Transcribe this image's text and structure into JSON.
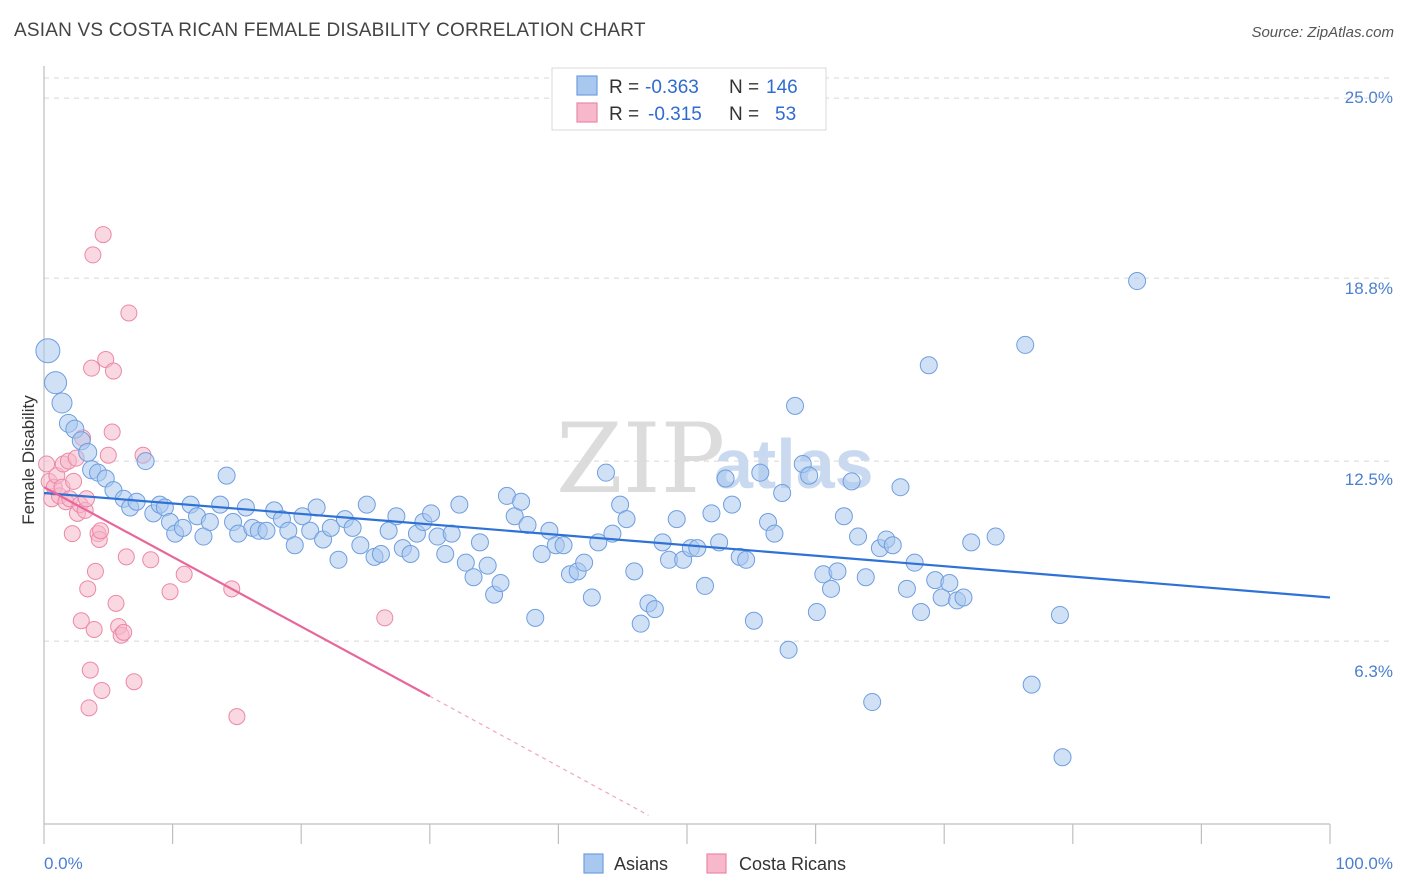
{
  "title": "ASIAN VS COSTA RICAN FEMALE DISABILITY CORRELATION CHART",
  "source": "Source: ZipAtlas.com",
  "watermark": {
    "part1": "ZIP",
    "part2": "atlas"
  },
  "legend_top": {
    "rows": [
      {
        "r_label": "R =",
        "r_value": "-0.363",
        "n_label": "N =",
        "n_value": "146"
      },
      {
        "r_label": "R =",
        "r_value": "-0.315",
        "n_label": "N =",
        "n_value": "53"
      }
    ]
  },
  "legend_bottom": {
    "asians": "Asians",
    "costa_ricans": "Costa Ricans"
  },
  "colors": {
    "asians_fill": "#a9c8ef",
    "asians_stroke": "#6f9ee0",
    "asians_line": "#2f72d6",
    "cr_fill": "#f6b8ca",
    "cr_stroke": "#ec88a7",
    "cr_line": "#e8679a",
    "grid": "#d8d8d8",
    "tick_text": "#4a7fd0"
  },
  "chart_data": {
    "type": "scatter",
    "title": "ASIAN VS COSTA RICAN FEMALE DISABILITY CORRELATION CHART",
    "xlabel": "",
    "ylabel": "Female Disability",
    "xlim": [
      0,
      100
    ],
    "ylim": [
      0,
      25.9
    ],
    "x_tick_labels": [
      "0.0%",
      "100.0%"
    ],
    "y_ticks": [
      6.3,
      12.5,
      18.8,
      25.0
    ],
    "y_tick_labels": [
      "6.3%",
      "12.5%",
      "18.8%",
      "25.0%"
    ],
    "grid": "horizontal dashed",
    "series": [
      {
        "name": "Asians",
        "trend": {
          "x0": 0,
          "y0": 11.4,
          "x1": 100,
          "y1": 7.8
        },
        "points": [
          [
            0.3,
            16.3
          ],
          [
            0.9,
            15.2
          ],
          [
            1.4,
            14.5
          ],
          [
            1.9,
            13.8
          ],
          [
            2.4,
            13.6
          ],
          [
            2.9,
            13.2
          ],
          [
            3.4,
            12.8
          ],
          [
            3.7,
            12.2
          ],
          [
            4.2,
            12.1
          ],
          [
            4.8,
            11.9
          ],
          [
            5.4,
            11.5
          ],
          [
            6.2,
            11.2
          ],
          [
            6.7,
            10.9
          ],
          [
            7.2,
            11.1
          ],
          [
            7.9,
            12.5
          ],
          [
            8.5,
            10.7
          ],
          [
            9.0,
            11.0
          ],
          [
            9.4,
            10.9
          ],
          [
            9.8,
            10.4
          ],
          [
            10.2,
            10.0
          ],
          [
            10.8,
            10.2
          ],
          [
            11.4,
            11.0
          ],
          [
            11.9,
            10.6
          ],
          [
            12.4,
            9.9
          ],
          [
            12.9,
            10.4
          ],
          [
            13.7,
            11.0
          ],
          [
            14.2,
            12.0
          ],
          [
            14.7,
            10.4
          ],
          [
            15.1,
            10.0
          ],
          [
            15.7,
            10.9
          ],
          [
            16.2,
            10.2
          ],
          [
            16.7,
            10.1
          ],
          [
            17.3,
            10.1
          ],
          [
            17.9,
            10.8
          ],
          [
            18.5,
            10.5
          ],
          [
            19.0,
            10.1
          ],
          [
            19.5,
            9.6
          ],
          [
            20.1,
            10.6
          ],
          [
            20.7,
            10.1
          ],
          [
            21.2,
            10.9
          ],
          [
            21.7,
            9.8
          ],
          [
            22.3,
            10.2
          ],
          [
            22.9,
            9.1
          ],
          [
            23.4,
            10.5
          ],
          [
            24.0,
            10.2
          ],
          [
            24.6,
            9.6
          ],
          [
            25.1,
            11.0
          ],
          [
            25.7,
            9.2
          ],
          [
            26.2,
            9.3
          ],
          [
            26.8,
            10.1
          ],
          [
            27.4,
            10.6
          ],
          [
            27.9,
            9.5
          ],
          [
            28.5,
            9.3
          ],
          [
            29.0,
            10.0
          ],
          [
            29.5,
            10.4
          ],
          [
            30.1,
            10.7
          ],
          [
            30.6,
            9.9
          ],
          [
            31.2,
            9.3
          ],
          [
            31.7,
            10.0
          ],
          [
            32.3,
            11.0
          ],
          [
            32.8,
            9.0
          ],
          [
            33.4,
            8.5
          ],
          [
            33.9,
            9.7
          ],
          [
            34.5,
            8.9
          ],
          [
            35.0,
            7.9
          ],
          [
            35.5,
            8.3
          ],
          [
            36.0,
            11.3
          ],
          [
            36.6,
            10.6
          ],
          [
            37.1,
            11.1
          ],
          [
            37.6,
            10.3
          ],
          [
            38.2,
            7.1
          ],
          [
            38.7,
            9.3
          ],
          [
            39.3,
            10.1
          ],
          [
            39.8,
            9.6
          ],
          [
            40.4,
            9.6
          ],
          [
            40.9,
            8.6
          ],
          [
            41.5,
            8.7
          ],
          [
            42.0,
            9.0
          ],
          [
            42.6,
            7.8
          ],
          [
            43.1,
            9.7
          ],
          [
            43.7,
            12.1
          ],
          [
            44.2,
            10.0
          ],
          [
            44.8,
            11.0
          ],
          [
            45.3,
            10.5
          ],
          [
            45.9,
            8.7
          ],
          [
            46.4,
            6.9
          ],
          [
            47.0,
            7.6
          ],
          [
            47.5,
            7.4
          ],
          [
            48.1,
            9.7
          ],
          [
            48.6,
            9.1
          ],
          [
            49.2,
            10.5
          ],
          [
            49.7,
            9.1
          ],
          [
            50.3,
            9.5
          ],
          [
            50.8,
            9.5
          ],
          [
            51.4,
            8.2
          ],
          [
            51.9,
            10.7
          ],
          [
            52.5,
            9.7
          ],
          [
            53.0,
            11.9
          ],
          [
            53.5,
            11.0
          ],
          [
            54.1,
            9.2
          ],
          [
            54.6,
            9.1
          ],
          [
            55.2,
            7.0
          ],
          [
            55.7,
            12.1
          ],
          [
            56.3,
            10.4
          ],
          [
            56.8,
            10.0
          ],
          [
            57.4,
            11.4
          ],
          [
            57.9,
            6.0
          ],
          [
            58.4,
            14.4
          ],
          [
            59.0,
            12.4
          ],
          [
            59.5,
            12.0
          ],
          [
            60.1,
            7.3
          ],
          [
            60.6,
            8.6
          ],
          [
            61.2,
            8.1
          ],
          [
            61.7,
            8.7
          ],
          [
            62.2,
            10.6
          ],
          [
            62.8,
            11.8
          ],
          [
            63.3,
            9.9
          ],
          [
            63.9,
            8.5
          ],
          [
            64.4,
            4.2
          ],
          [
            65.0,
            9.5
          ],
          [
            65.5,
            9.8
          ],
          [
            66.0,
            9.6
          ],
          [
            66.6,
            11.6
          ],
          [
            67.1,
            8.1
          ],
          [
            67.7,
            9.0
          ],
          [
            68.2,
            7.3
          ],
          [
            68.8,
            15.8
          ],
          [
            69.3,
            8.4
          ],
          [
            69.8,
            7.8
          ],
          [
            70.4,
            8.3
          ],
          [
            71.0,
            7.7
          ],
          [
            71.5,
            7.8
          ],
          [
            72.1,
            9.7
          ],
          [
            74.0,
            9.9
          ],
          [
            76.3,
            16.5
          ],
          [
            76.8,
            4.8
          ],
          [
            79.0,
            7.2
          ],
          [
            79.2,
            2.3
          ],
          [
            85.0,
            18.7
          ]
        ]
      },
      {
        "name": "Costa Ricans",
        "trend": {
          "x0": 0,
          "y0": 11.6,
          "x1": 30,
          "y1": 4.4,
          "dash_to_x": 47,
          "dash_to_y": 0.3
        },
        "points": [
          [
            0.2,
            12.4
          ],
          [
            0.4,
            11.8
          ],
          [
            0.6,
            11.2
          ],
          [
            0.8,
            11.6
          ],
          [
            1.0,
            12.0
          ],
          [
            1.2,
            11.3
          ],
          [
            1.4,
            11.6
          ],
          [
            1.5,
            12.4
          ],
          [
            1.7,
            11.1
          ],
          [
            1.9,
            12.5
          ],
          [
            2.0,
            11.2
          ],
          [
            2.2,
            10.0
          ],
          [
            2.3,
            11.8
          ],
          [
            2.5,
            12.6
          ],
          [
            2.6,
            10.7
          ],
          [
            2.8,
            11.0
          ],
          [
            2.9,
            7.0
          ],
          [
            3.0,
            13.3
          ],
          [
            3.2,
            10.8
          ],
          [
            3.3,
            11.2
          ],
          [
            3.4,
            8.1
          ],
          [
            3.5,
            4.0
          ],
          [
            3.6,
            5.3
          ],
          [
            3.7,
            15.7
          ],
          [
            3.8,
            19.6
          ],
          [
            3.9,
            6.7
          ],
          [
            4.0,
            8.7
          ],
          [
            4.2,
            10.0
          ],
          [
            4.3,
            9.8
          ],
          [
            4.4,
            10.1
          ],
          [
            4.5,
            4.6
          ],
          [
            4.6,
            20.3
          ],
          [
            4.8,
            16.0
          ],
          [
            5.0,
            12.7
          ],
          [
            5.3,
            13.5
          ],
          [
            5.4,
            15.6
          ],
          [
            5.6,
            7.6
          ],
          [
            5.8,
            6.8
          ],
          [
            6.0,
            6.5
          ],
          [
            6.2,
            6.6
          ],
          [
            6.4,
            9.2
          ],
          [
            6.6,
            17.6
          ],
          [
            7.0,
            4.9
          ],
          [
            7.7,
            12.7
          ],
          [
            8.3,
            9.1
          ],
          [
            9.8,
            8.0
          ],
          [
            10.9,
            8.6
          ],
          [
            14.6,
            8.1
          ],
          [
            15.0,
            3.7
          ],
          [
            26.5,
            7.1
          ]
        ]
      }
    ]
  }
}
